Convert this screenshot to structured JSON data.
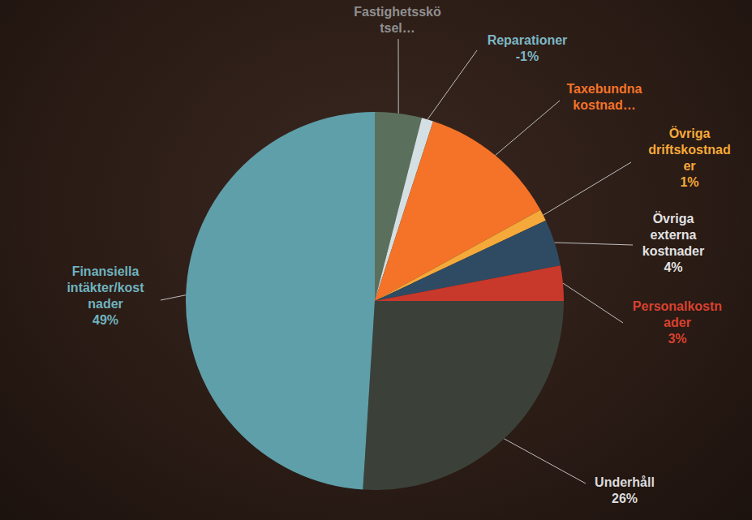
{
  "chart_data": {
    "type": "pie",
    "categories": [
      "Fastighetsskötsel…",
      "Reparationer",
      "Taxebundna kostnad…",
      "Övriga driftskostnader",
      "Övriga externa kostnader",
      "Personalkostnader",
      "Underhåll",
      "Finansiella intäkter/kostnader"
    ],
    "values": [
      4,
      -1,
      12,
      1,
      4,
      3,
      26,
      49
    ],
    "value_labels": [
      null,
      "-1%",
      null,
      "1%",
      "4%",
      "3%",
      "26%",
      "49%"
    ],
    "colors": [
      "#5b6f5d",
      "#d3dfe2",
      "#f47328",
      "#f5a93a",
      "#2f4b64",
      "#c8392b",
      "#3b4139",
      "#5f9fa9"
    ],
    "data_labels": true
  }
}
